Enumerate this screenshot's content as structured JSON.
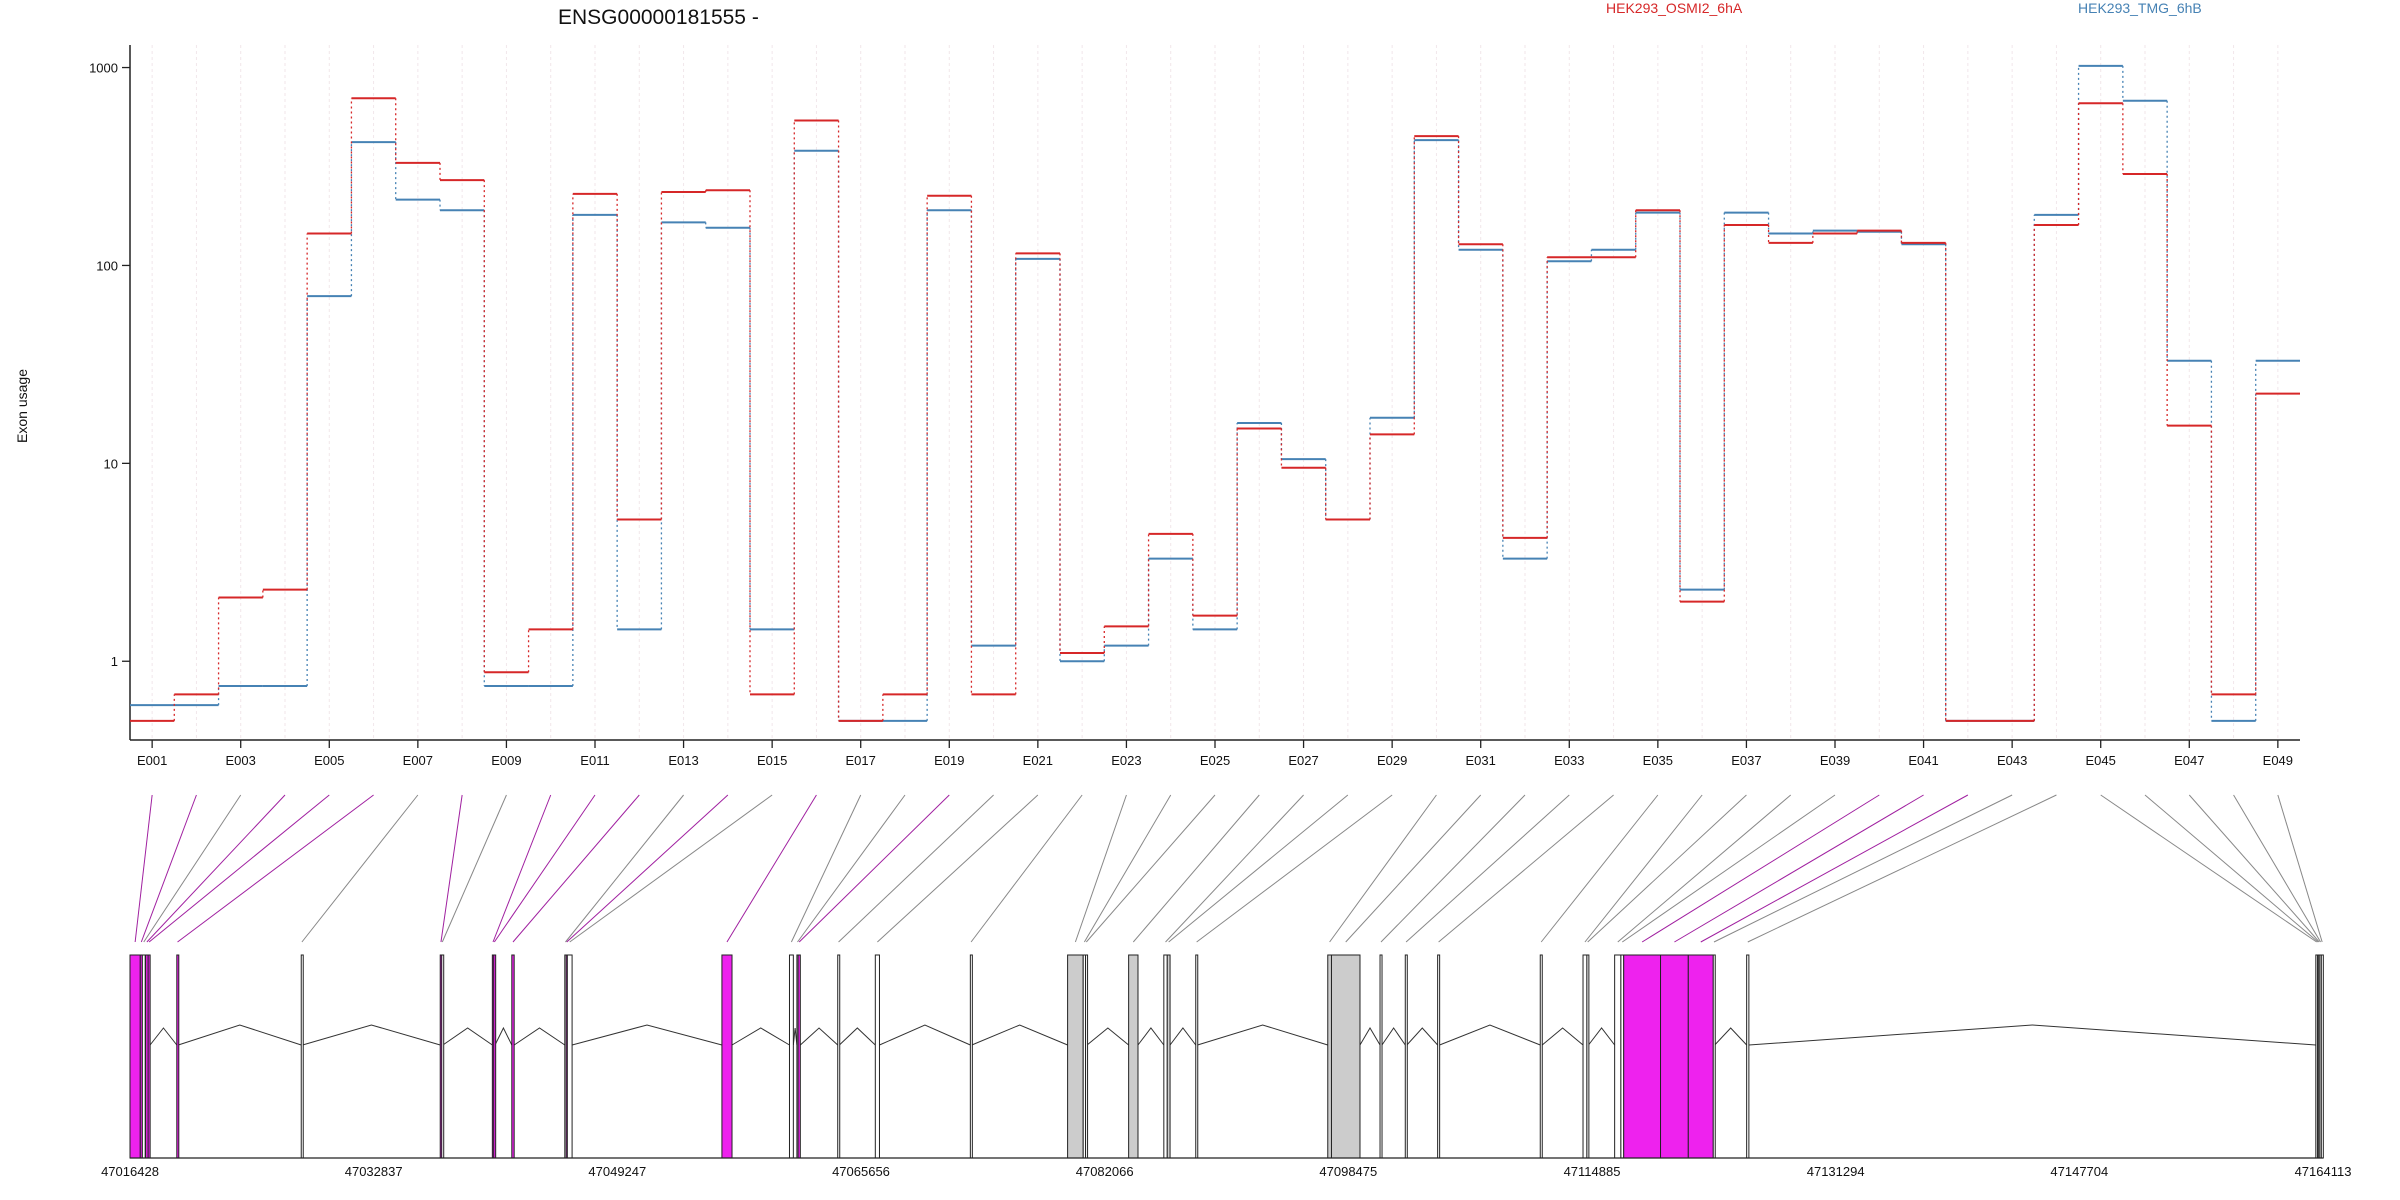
{
  "chart_data": {
    "type": "line",
    "title": "ENSG00000181555 -",
    "ylabel": "Exon usage",
    "yscale": "log",
    "ylim": [
      0.4,
      1300
    ],
    "y_ticks": [
      "1",
      "10",
      "100",
      "1000"
    ],
    "legend_placement": "top-right",
    "categories": [
      "E001",
      "E002",
      "E003",
      "E004",
      "E005",
      "E006",
      "E007",
      "E008",
      "E009",
      "E010",
      "E011",
      "E012",
      "E013",
      "E014",
      "E015",
      "E016",
      "E017",
      "E018",
      "E019",
      "E020",
      "E021",
      "E022",
      "E023",
      "E024",
      "E025",
      "E026",
      "E027",
      "E028",
      "E029",
      "E030",
      "E031",
      "E032",
      "E033",
      "E034",
      "E035",
      "E036",
      "E037",
      "E038",
      "E039",
      "E040",
      "E041",
      "E042",
      "E043",
      "E044",
      "E045",
      "E046",
      "E047",
      "E048",
      "E049"
    ],
    "x_tick_labels": [
      "E001",
      "E003",
      "E005",
      "E007",
      "E009",
      "E011",
      "E013",
      "E015",
      "E017",
      "E019",
      "E021",
      "E023",
      "E025",
      "E027",
      "E029",
      "E031",
      "E033",
      "E035",
      "E037",
      "E039",
      "E041",
      "E043",
      "E045",
      "E047",
      "E049"
    ],
    "series": [
      {
        "name": "HEK293_OSMI2_6hA",
        "color": "#d62728",
        "values": [
          0.5,
          0.68,
          2.1,
          2.3,
          145,
          700,
          330,
          270,
          0.88,
          1.45,
          230,
          5.2,
          235,
          240,
          0.68,
          540,
          0.5,
          0.68,
          225,
          0.68,
          115,
          1.1,
          1.5,
          4.4,
          1.7,
          15,
          9.5,
          5.2,
          14,
          450,
          128,
          4.2,
          110,
          110,
          190,
          2.0,
          160,
          130,
          145,
          150,
          130,
          0.5,
          0.5,
          160,
          660,
          290,
          15.5,
          0.68,
          22.5
        ]
      },
      {
        "name": "HEK293_TMG_6hB",
        "color": "#4682b4",
        "values": [
          0.6,
          0.6,
          0.75,
          0.75,
          70,
          420,
          215,
          190,
          0.75,
          0.75,
          180,
          1.45,
          165,
          155,
          1.45,
          380,
          0.5,
          0.5,
          190,
          1.2,
          108,
          1.0,
          1.2,
          3.3,
          1.45,
          16,
          10.5,
          5.2,
          17,
          430,
          120,
          3.3,
          105,
          120,
          185,
          2.3,
          185,
          145,
          150,
          148,
          128,
          0.5,
          0.5,
          180,
          1020,
          680,
          33,
          0.5,
          33
        ]
      }
    ]
  },
  "gene_model": {
    "genomic_axis_labels": [
      "47016428",
      "47032837",
      "47049247",
      "47065656",
      "47082066",
      "47098475",
      "47114885",
      "47131294",
      "47147704",
      "47164113"
    ],
    "genomic_start": 47016428,
    "genomic_end": 47164113,
    "colors": {
      "highlight": "#ee22ee",
      "tested": "#cccccc",
      "untested": "#ffffff",
      "outline": "#222222",
      "link_plain": "#888888",
      "link_highlight": "#a020a0"
    },
    "exons": [
      {
        "id": "E001",
        "start": 47016428,
        "end": 47017120,
        "status": "highlight"
      },
      {
        "id": "E002",
        "start": 47017120,
        "end": 47017260,
        "status": "highlight"
      },
      {
        "id": "E003",
        "start": 47017260,
        "end": 47017450,
        "status": "untested"
      },
      {
        "id": "E004",
        "start": 47017480,
        "end": 47017650,
        "status": "highlight"
      },
      {
        "id": "E005",
        "start": 47017650,
        "end": 47017780,
        "status": "highlight"
      },
      {
        "id": "E006",
        "start": 47019580,
        "end": 47019680,
        "status": "highlight"
      },
      {
        "id": "E007",
        "start": 47027960,
        "end": 47028050,
        "status": "untested"
      },
      {
        "id": "E008",
        "start": 47037320,
        "end": 47037420,
        "status": "highlight"
      },
      {
        "id": "E009",
        "start": 47037420,
        "end": 47037500,
        "status": "untested"
      },
      {
        "id": "E010",
        "start": 47040830,
        "end": 47040920,
        "status": "highlight"
      },
      {
        "id": "E011",
        "start": 47040920,
        "end": 47041010,
        "status": "highlight"
      },
      {
        "id": "E012",
        "start": 47042140,
        "end": 47042300,
        "status": "highlight"
      },
      {
        "id": "E013",
        "start": 47045710,
        "end": 47045800,
        "status": "untested"
      },
      {
        "id": "E014",
        "start": 47045800,
        "end": 47045880,
        "status": "highlight"
      },
      {
        "id": "E015",
        "start": 47045880,
        "end": 47046200,
        "status": "untested"
      },
      {
        "id": "E016",
        "start": 47056290,
        "end": 47056970,
        "status": "highlight"
      },
      {
        "id": "E017",
        "start": 47060840,
        "end": 47061100,
        "status": "untested"
      },
      {
        "id": "E018",
        "start": 47061340,
        "end": 47061420,
        "status": "untested"
      },
      {
        "id": "E019",
        "start": 47061420,
        "end": 47061570,
        "status": "highlight"
      },
      {
        "id": "E020",
        "start": 47064090,
        "end": 47064200,
        "status": "untested"
      },
      {
        "id": "E021",
        "start": 47066620,
        "end": 47066900,
        "status": "untested"
      },
      {
        "id": "E022",
        "start": 47073020,
        "end": 47073120,
        "status": "untested"
      },
      {
        "id": "E023",
        "start": 47079570,
        "end": 47080620,
        "status": "tested"
      },
      {
        "id": "E024",
        "start": 47080620,
        "end": 47080780,
        "status": "untested"
      },
      {
        "id": "E025",
        "start": 47080780,
        "end": 47080880,
        "status": "untested"
      },
      {
        "id": "E026",
        "start": 47083680,
        "end": 47084310,
        "status": "tested"
      },
      {
        "id": "E027",
        "start": 47086050,
        "end": 47086280,
        "status": "untested"
      },
      {
        "id": "E028",
        "start": 47086280,
        "end": 47086470,
        "status": "tested"
      },
      {
        "id": "E029",
        "start": 47088200,
        "end": 47088320,
        "status": "untested"
      },
      {
        "id": "E030",
        "start": 47097090,
        "end": 47097340,
        "status": "tested"
      },
      {
        "id": "E031",
        "start": 47097340,
        "end": 47099260,
        "status": "tested"
      },
      {
        "id": "E032",
        "start": 47100610,
        "end": 47100740,
        "status": "untested"
      },
      {
        "id": "E033",
        "start": 47102310,
        "end": 47102420,
        "status": "untested"
      },
      {
        "id": "E034",
        "start": 47104490,
        "end": 47104620,
        "status": "untested"
      },
      {
        "id": "E035",
        "start": 47111400,
        "end": 47111530,
        "status": "untested"
      },
      {
        "id": "E036",
        "start": 47114280,
        "end": 47114540,
        "status": "untested"
      },
      {
        "id": "E037",
        "start": 47114540,
        "end": 47114650,
        "status": "untested"
      },
      {
        "id": "E038",
        "start": 47116410,
        "end": 47116830,
        "status": "untested"
      },
      {
        "id": "E039",
        "start": 47116830,
        "end": 47117020,
        "status": "untested"
      },
      {
        "id": "E040",
        "start": 47117020,
        "end": 47119500,
        "status": "highlight"
      },
      {
        "id": "E041",
        "start": 47119500,
        "end": 47121370,
        "status": "highlight"
      },
      {
        "id": "E042",
        "start": 47121370,
        "end": 47123050,
        "status": "highlight"
      },
      {
        "id": "E043",
        "start": 47123050,
        "end": 47123150,
        "status": "untested"
      },
      {
        "id": "E044",
        "start": 47125300,
        "end": 47125450,
        "status": "untested"
      },
      {
        "id": "E045",
        "start": 47163630,
        "end": 47163740,
        "status": "untested"
      },
      {
        "id": "E046",
        "start": 47163740,
        "end": 47163820,
        "status": "untested"
      },
      {
        "id": "E047",
        "start": 47163820,
        "end": 47163900,
        "status": "untested"
      },
      {
        "id": "E048",
        "start": 47163900,
        "end": 47164000,
        "status": "untested"
      },
      {
        "id": "E049",
        "start": 47164000,
        "end": 47164113,
        "status": "untested"
      }
    ]
  }
}
